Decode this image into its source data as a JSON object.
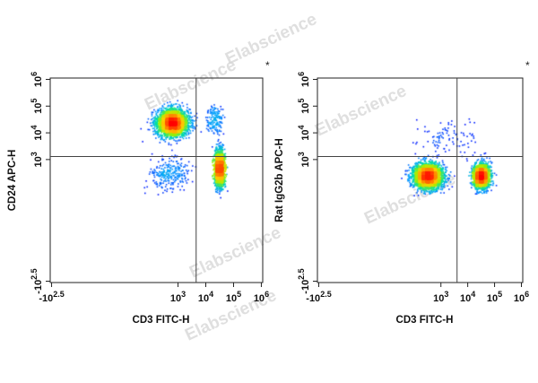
{
  "watermark_text": "Elabscience",
  "colormap": [
    "#0000ff",
    "#00a0ff",
    "#00e0a0",
    "#a0f000",
    "#ffd000",
    "#ff7000",
    "#ff0000"
  ],
  "chart_data": [
    {
      "type": "scatter",
      "subtype": "flow-cytometry-density-plot",
      "xlabel": "CD3 FITC-H",
      "ylabel": "CD24 APC-H",
      "corner_mark": "*",
      "x_scale": "biexponential",
      "y_scale": "biexponential",
      "x_ticks": [
        {
          "value": -316,
          "base": "-10",
          "exp": "2.5"
        },
        {
          "value": 1000,
          "base": "10",
          "exp": "3"
        },
        {
          "value": 10000,
          "base": "10",
          "exp": "4"
        },
        {
          "value": 100000,
          "base": "10",
          "exp": "5"
        },
        {
          "value": 1000000,
          "base": "10",
          "exp": "6"
        }
      ],
      "y_ticks": [
        {
          "value": -316,
          "base": "-10",
          "exp": "2.5"
        },
        {
          "value": 1000,
          "base": "10",
          "exp": "3"
        },
        {
          "value": 10000,
          "base": "10",
          "exp": "4"
        },
        {
          "value": 100000,
          "base": "10",
          "exp": "5"
        },
        {
          "value": 1000000,
          "base": "10",
          "exp": "6"
        }
      ],
      "quadrant_gate": {
        "x": 4500,
        "y": 1300
      },
      "populations": [
        {
          "x": 600,
          "y": 25000,
          "x_spread": 0.55,
          "y_spread": 0.5,
          "weight": 0.58
        },
        {
          "x": 30000,
          "y": 500,
          "x_spread": 0.18,
          "y_spread": 0.65,
          "weight": 0.34
        },
        {
          "x": 500,
          "y": 300,
          "x_spread": 0.7,
          "y_spread": 0.6,
          "weight": 0.05
        },
        {
          "x": 20000,
          "y": 30000,
          "x_spread": 0.3,
          "y_spread": 0.6,
          "weight": 0.03
        }
      ]
    },
    {
      "type": "scatter",
      "subtype": "flow-cytometry-density-plot",
      "xlabel": "CD3 FITC-H",
      "ylabel": "Rat IgG2b APC-H",
      "corner_mark": "*",
      "x_scale": "biexponential",
      "y_scale": "biexponential",
      "x_ticks": [
        {
          "value": -316,
          "base": "-10",
          "exp": "2.5"
        },
        {
          "value": 1000,
          "base": "10",
          "exp": "3"
        },
        {
          "value": 10000,
          "base": "10",
          "exp": "4"
        },
        {
          "value": 100000,
          "base": "10",
          "exp": "5"
        },
        {
          "value": 1000000,
          "base": "10",
          "exp": "6"
        }
      ],
      "y_ticks": [
        {
          "value": -316,
          "base": "-10",
          "exp": "2.5"
        },
        {
          "value": 1000,
          "base": "10",
          "exp": "3"
        },
        {
          "value": 10000,
          "base": "10",
          "exp": "4"
        },
        {
          "value": 100000,
          "base": "10",
          "exp": "5"
        },
        {
          "value": 1000000,
          "base": "10",
          "exp": "6"
        }
      ],
      "quadrant_gate": {
        "x": 4000,
        "y": 1300
      },
      "populations": [
        {
          "x": 300,
          "y": 250,
          "x_spread": 0.55,
          "y_spread": 0.45,
          "weight": 0.6
        },
        {
          "x": 30000,
          "y": 250,
          "x_spread": 0.3,
          "y_spread": 0.45,
          "weight": 0.38
        },
        {
          "x": 2000,
          "y": 5000,
          "x_spread": 1.2,
          "y_spread": 0.8,
          "weight": 0.02
        }
      ]
    }
  ]
}
